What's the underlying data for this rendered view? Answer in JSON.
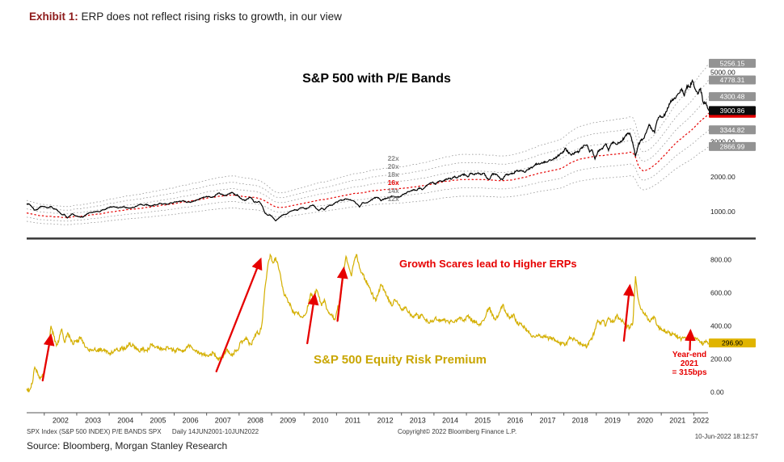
{
  "header": {
    "exhibit_label": "Exhibit 1:",
    "title": "ERP does not reflect rising risks to growth, in our view"
  },
  "footer": {
    "ticker_info": "SPX Index (S&P 500 INDEX) P/E BANDS SPX      Daily 14JUN2001-10JUN2022",
    "copyright": "Copyright© 2022 Bloomberg Finance L.P.",
    "timestamp": "10-Jun-2022 18:12:57",
    "source": "Source: Bloomberg, Morgan Stanley Research"
  },
  "chart_data": {
    "type": "line",
    "x": {
      "unit": "decimal_year",
      "start": 2001.4583,
      "step": 0.0833333,
      "count": 253,
      "end": 2022.44
    },
    "x_ticks": [
      2002,
      2003,
      2004,
      2005,
      2006,
      2007,
      2008,
      2009,
      2010,
      2011,
      2012,
      2013,
      2014,
      2015,
      2016,
      2017,
      2018,
      2019,
      2020,
      2021,
      2022
    ],
    "top_panel": {
      "title": "S&P 500 with P/E Bands",
      "ylim": [
        280,
        5450
      ],
      "yticks": [
        5000,
        3000,
        2000,
        1000
      ],
      "price": {
        "name": "S&P 500 (SPX Index)",
        "color": "#000000",
        "last": 3900.86,
        "monthly_values": [
          1224,
          1211,
          1134,
          1041,
          1060,
          1139,
          1148,
          1130,
          1107,
          1147,
          1077,
          1067,
          990,
          912,
          916,
          815,
          886,
          936,
          880,
          856,
          841,
          848,
          917,
          964,
          975,
          990,
          1008,
          996,
          1051,
          1058,
          1112,
          1131,
          1145,
          1126,
          1107,
          1121,
          1141,
          1102,
          1104,
          1115,
          1130,
          1174,
          1212,
          1181,
          1204,
          1181,
          1157,
          1192,
          1191,
          1234,
          1220,
          1229,
          1207,
          1249,
          1248,
          1280,
          1281,
          1295,
          1311,
          1270,
          1270,
          1277,
          1304,
          1336,
          1378,
          1401,
          1418,
          1438,
          1407,
          1421,
          1482,
          1531,
          1503,
          1455,
          1474,
          1527,
          1549,
          1481,
          1468,
          1379,
          1331,
          1323,
          1386,
          1400,
          1280,
          1267,
          1283,
          1166,
          969,
          896,
          903,
          826,
          735,
          798,
          873,
          919,
          919,
          987,
          1021,
          1057,
          1036,
          1096,
          1115,
          1074,
          1104,
          1169,
          1187,
          1089,
          1031,
          1102,
          1049,
          1141,
          1183,
          1181,
          1258,
          1286,
          1327,
          1326,
          1364,
          1345,
          1321,
          1292,
          1219,
          1131,
          1253,
          1247,
          1258,
          1312,
          1366,
          1408,
          1398,
          1310,
          1362,
          1379,
          1407,
          1441,
          1412,
          1416,
          1426,
          1498,
          1515,
          1569,
          1598,
          1631,
          1606,
          1686,
          1633,
          1682,
          1757,
          1806,
          1848,
          1783,
          1859,
          1872,
          1884,
          1924,
          1960,
          1931,
          2003,
          1972,
          2018,
          2068,
          2059,
          1995,
          2105,
          2068,
          2086,
          2107,
          2063,
          2104,
          1972,
          1920,
          2079,
          2080,
          2044,
          1940,
          1932,
          2060,
          2065,
          2097,
          2099,
          2174,
          2171,
          2168,
          2126,
          2199,
          2239,
          2279,
          2364,
          2363,
          2384,
          2412,
          2423,
          2470,
          2472,
          2519,
          2575,
          2648,
          2674,
          2824,
          2714,
          2641,
          2648,
          2705,
          2718,
          2816,
          2902,
          2914,
          2712,
          2760,
          2507,
          2704,
          2785,
          2834,
          2946,
          2752,
          2942,
          2980,
          2926,
          2977,
          3038,
          3141,
          3231,
          3226,
          2954,
          2585,
          2912,
          3044,
          3100,
          3271,
          3500,
          3363,
          3270,
          3622,
          3756,
          3714,
          3811,
          3973,
          4181,
          4204,
          4298,
          4395,
          4523,
          4308,
          4605,
          4567,
          4766,
          4516,
          4374,
          4530,
          4132,
          4132,
          3900.86
        ]
      },
      "pe_bands": {
        "multiples": [
          12,
          14,
          16,
          18,
          20,
          22
        ],
        "labels": [
          "12x",
          "14x",
          "16x",
          "18x",
          "20x",
          "22x"
        ],
        "highlight_multiple": 16,
        "highlight_color": "#e60000",
        "band_color": "#a3a3a3",
        "label_x_year": 2012.75,
        "forward_eps_monthly": [
          60,
          59,
          58,
          57,
          56,
          55,
          55,
          54,
          54,
          54,
          53,
          53,
          53,
          52,
          52,
          52,
          52,
          53,
          54,
          54,
          54,
          55,
          55,
          56,
          57,
          57,
          58,
          58,
          59,
          60,
          61,
          62,
          62,
          63,
          64,
          64,
          65,
          66,
          66,
          67,
          67,
          68,
          68,
          69,
          70,
          70,
          71,
          72,
          72,
          73,
          74,
          74,
          75,
          76,
          76,
          77,
          78,
          79,
          80,
          80,
          81,
          82,
          83,
          83,
          84,
          85,
          86,
          87,
          88,
          88,
          89,
          90,
          90,
          91,
          91,
          92,
          92,
          92,
          91,
          90,
          90,
          89,
          89,
          88,
          88,
          87,
          86,
          84,
          82,
          79,
          76,
          73,
          71,
          70,
          70,
          70,
          71,
          72,
          73,
          74,
          75,
          76,
          77,
          78,
          79,
          80,
          81,
          82,
          83,
          84,
          84,
          85,
          86,
          87,
          88,
          89,
          90,
          91,
          92,
          93,
          94,
          95,
          95,
          96,
          96,
          97,
          98,
          99,
          100,
          100,
          101,
          101,
          102,
          102,
          102,
          103,
          103,
          103,
          104,
          104,
          105,
          105,
          106,
          107,
          107,
          108,
          109,
          109,
          110,
          111,
          112,
          113,
          114,
          115,
          116,
          117,
          117,
          118,
          119,
          119,
          120,
          120,
          120,
          120,
          120,
          120,
          120,
          120,
          120,
          120,
          119,
          119,
          119,
          119,
          118,
          118,
          118,
          118,
          119,
          119,
          120,
          121,
          122,
          123,
          124,
          125,
          127,
          128,
          129,
          131,
          132,
          133,
          134,
          135,
          136,
          137,
          138,
          139,
          141,
          144,
          147,
          150,
          152,
          154,
          156,
          157,
          158,
          159,
          160,
          161,
          162,
          162,
          163,
          163,
          164,
          164,
          165,
          165,
          166,
          166,
          167,
          167,
          168,
          169,
          168,
          160,
          145,
          138,
          135,
          137,
          139,
          142,
          146,
          150,
          155,
          160,
          165,
          170,
          176,
          181,
          186,
          190,
          194,
          198,
          202,
          206,
          210,
          215,
          220,
          225,
          229,
          233,
          238.92
        ]
      },
      "badges": [
        {
          "name": "band-22x-last",
          "label": "5256.15",
          "value": 5256.15,
          "bg": "#939393",
          "fg": "#ffffff"
        },
        {
          "name": "band-20x-last",
          "label": "4778.31",
          "value": 4778.31,
          "bg": "#939393",
          "fg": "#ffffff"
        },
        {
          "name": "band-18x-last",
          "label": "4300.48",
          "value": 4300.48,
          "bg": "#939393",
          "fg": "#ffffff"
        },
        {
          "name": "band-16x-last",
          "label": "",
          "value": 3822.7,
          "bg": "#e60000",
          "fg": "#ffffff"
        },
        {
          "name": "price-last",
          "label": "3900.86",
          "value": 3900.86,
          "bg": "#0a0a0a",
          "fg": "#ffffff"
        },
        {
          "name": "band-14x-last",
          "label": "3344.82",
          "value": 3344.82,
          "bg": "#939393",
          "fg": "#ffffff"
        },
        {
          "name": "band-12x-last",
          "label": "2866.99",
          "value": 2866.99,
          "bg": "#939393",
          "fg": "#ffffff"
        }
      ]
    },
    "bottom_panel": {
      "series_label": "S&P 500 Equity Risk Premium",
      "unit": "bps",
      "color": "#d4af00",
      "ylim": [
        -120,
        900
      ],
      "yticks": [
        800,
        600,
        400,
        200,
        0
      ],
      "last": 296.9,
      "badge": {
        "name": "erp-last",
        "label": "296.90",
        "value": 296.9,
        "bg": "#e0b400",
        "fg": "#000000"
      },
      "annotation": "Growth Scares lead to Higher ERPs",
      "year_end_note": "Year-end\n2021\n= 315bps",
      "arrows": [
        {
          "from": [
            2001.95,
            70
          ],
          "to": [
            2002.2,
            340
          ]
        },
        {
          "from": [
            2007.3,
            125
          ],
          "to": [
            2008.66,
            800
          ]
        },
        {
          "from": [
            2010.1,
            295
          ],
          "to": [
            2010.33,
            585
          ]
        },
        {
          "from": [
            2011.03,
            430
          ],
          "to": [
            2011.22,
            745
          ]
        },
        {
          "from": [
            2019.85,
            310
          ],
          "to": [
            2020.03,
            640
          ]
        },
        {
          "from": [
            2021.88,
            255
          ],
          "to": [
            2021.9,
            368
          ]
        }
      ],
      "monthly_values": [
        20,
        10,
        50,
        150,
        120,
        80,
        100,
        180,
        250,
        400,
        340,
        280,
        320,
        380,
        300,
        350,
        330,
        290,
        310,
        310,
        330,
        300,
        270,
        255,
        250,
        260,
        250,
        260,
        250,
        255,
        240,
        235,
        240,
        260,
        250,
        270,
        260,
        280,
        290,
        280,
        275,
        255,
        250,
        260,
        250,
        262,
        290,
        280,
        275,
        260,
        265,
        258,
        275,
        260,
        255,
        250,
        255,
        250,
        245,
        270,
        280,
        268,
        255,
        245,
        235,
        230,
        225,
        215,
        230,
        235,
        215,
        195,
        205,
        230,
        260,
        235,
        215,
        255,
        250,
        300,
        310,
        330,
        300,
        285,
        330,
        360,
        350,
        420,
        620,
        750,
        830,
        780,
        815,
        755,
        680,
        600,
        570,
        540,
        500,
        470,
        480,
        460,
        450,
        470,
        520,
        600,
        560,
        620,
        575,
        520,
        560,
        500,
        470,
        455,
        440,
        520,
        560,
        700,
        820,
        760,
        700,
        790,
        830,
        750,
        720,
        685,
        655,
        620,
        580,
        550,
        600,
        650,
        620,
        580,
        555,
        520,
        560,
        540,
        515,
        495,
        510,
        480,
        470,
        450,
        480,
        445,
        465,
        440,
        430,
        420,
        430,
        450,
        435,
        428,
        440,
        430,
        420,
        432,
        420,
        430,
        452,
        432,
        440,
        458,
        440,
        430,
        420,
        410,
        420,
        432,
        482,
        512,
        462,
        440,
        450,
        490,
        530,
        480,
        460,
        450,
        472,
        420,
        412,
        402,
        392,
        372,
        352,
        340,
        332,
        342,
        330,
        340,
        330,
        322,
        332,
        312,
        302,
        292,
        300,
        282,
        312,
        330,
        320,
        310,
        300,
        290,
        280,
        272,
        312,
        322,
        380,
        438,
        420,
        430,
        400,
        450,
        430,
        422,
        462,
        440,
        430,
        410,
        398,
        388,
        420,
        700,
        560,
        500,
        480,
        462,
        432,
        440,
        452,
        402,
        382,
        372,
        362,
        370,
        352,
        350,
        340,
        330,
        322,
        332,
        320,
        330,
        315,
        330,
        320,
        302,
        290,
        312,
        296.9
      ]
    }
  }
}
